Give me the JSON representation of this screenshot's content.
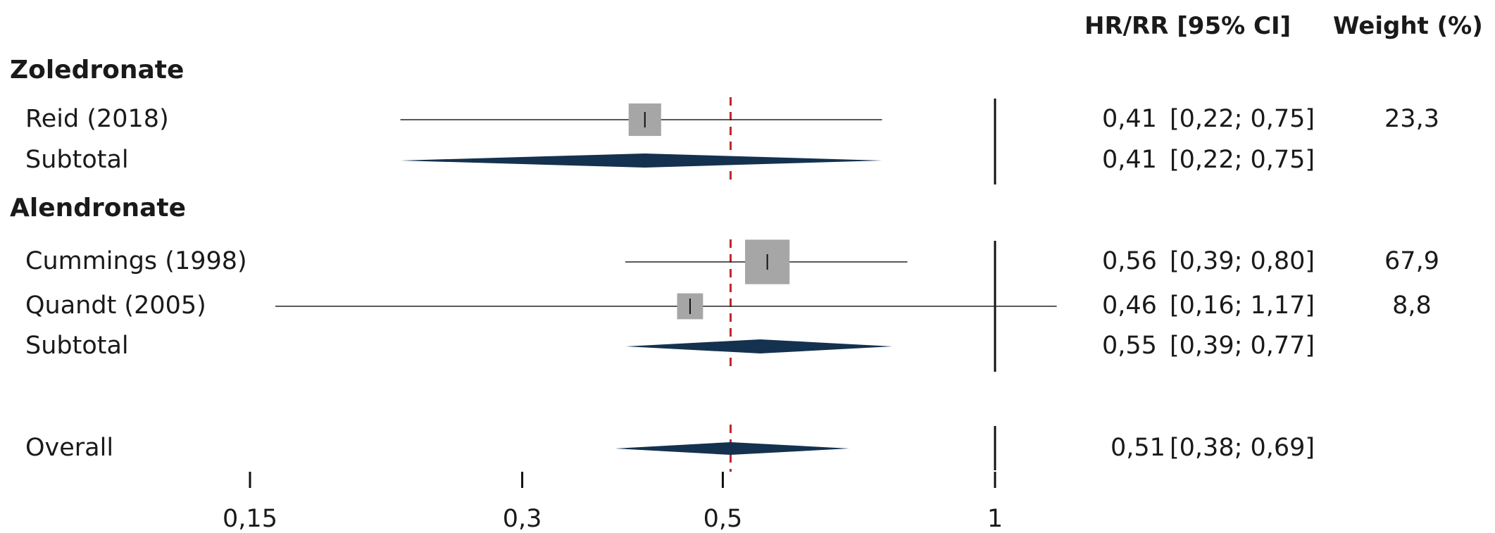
{
  "chart_data": {
    "type": "forest",
    "x_scale": "log",
    "x_ticks": [
      0.15,
      0.3,
      0.5,
      1
    ],
    "x_tick_labels": [
      "0,15",
      "0,3",
      "0,5",
      "1"
    ],
    "xlim": [
      0.11,
      1.1
    ],
    "null_line": 1,
    "overall_reference_line": 0.51,
    "reference_line_color": "#c0272d",
    "marker_color": "#a6a6a6",
    "diamond_color": "#14314f",
    "columns": {
      "effect_header": "HR/RR [95% CI]",
      "weight_header": "Weight (%)"
    },
    "rows": [
      {
        "kind": "group",
        "label": "Zoledronate"
      },
      {
        "kind": "study",
        "label": "Reid (2018)",
        "est": 0.41,
        "lo": 0.22,
        "hi": 0.75,
        "est_text": "0,41",
        "ci_text": "[0,22; 0,75]",
        "weight": 23.3,
        "weight_text": "23,3"
      },
      {
        "kind": "subtotal",
        "label": "Subtotal",
        "est": 0.41,
        "lo": 0.22,
        "hi": 0.75,
        "est_text": "0,41",
        "ci_text": "[0,22; 0,75]"
      },
      {
        "kind": "group",
        "label": "Alendronate"
      },
      {
        "kind": "study",
        "label": "Cummings (1998)",
        "est": 0.56,
        "lo": 0.39,
        "hi": 0.8,
        "est_text": "0,56",
        "ci_text": "[0,39; 0,80]",
        "weight": 67.9,
        "weight_text": "67,9"
      },
      {
        "kind": "study",
        "label": "Quandt (2005)",
        "est": 0.46,
        "lo": 0.16,
        "hi": 1.17,
        "est_text": "0,46",
        "ci_text": "[0,16; 1,17]",
        "weight": 8.8,
        "weight_text": "8,8"
      },
      {
        "kind": "subtotal",
        "label": "Subtotal",
        "est": 0.55,
        "lo": 0.39,
        "hi": 0.77,
        "est_text": "0,55",
        "ci_text": "[0,39; 0,77]"
      },
      {
        "kind": "overall",
        "label": "Overall",
        "est": 0.51,
        "lo": 0.38,
        "hi": 0.69,
        "est_text": "0,51",
        "ci_text": "[0,38; 0,69]"
      }
    ]
  }
}
